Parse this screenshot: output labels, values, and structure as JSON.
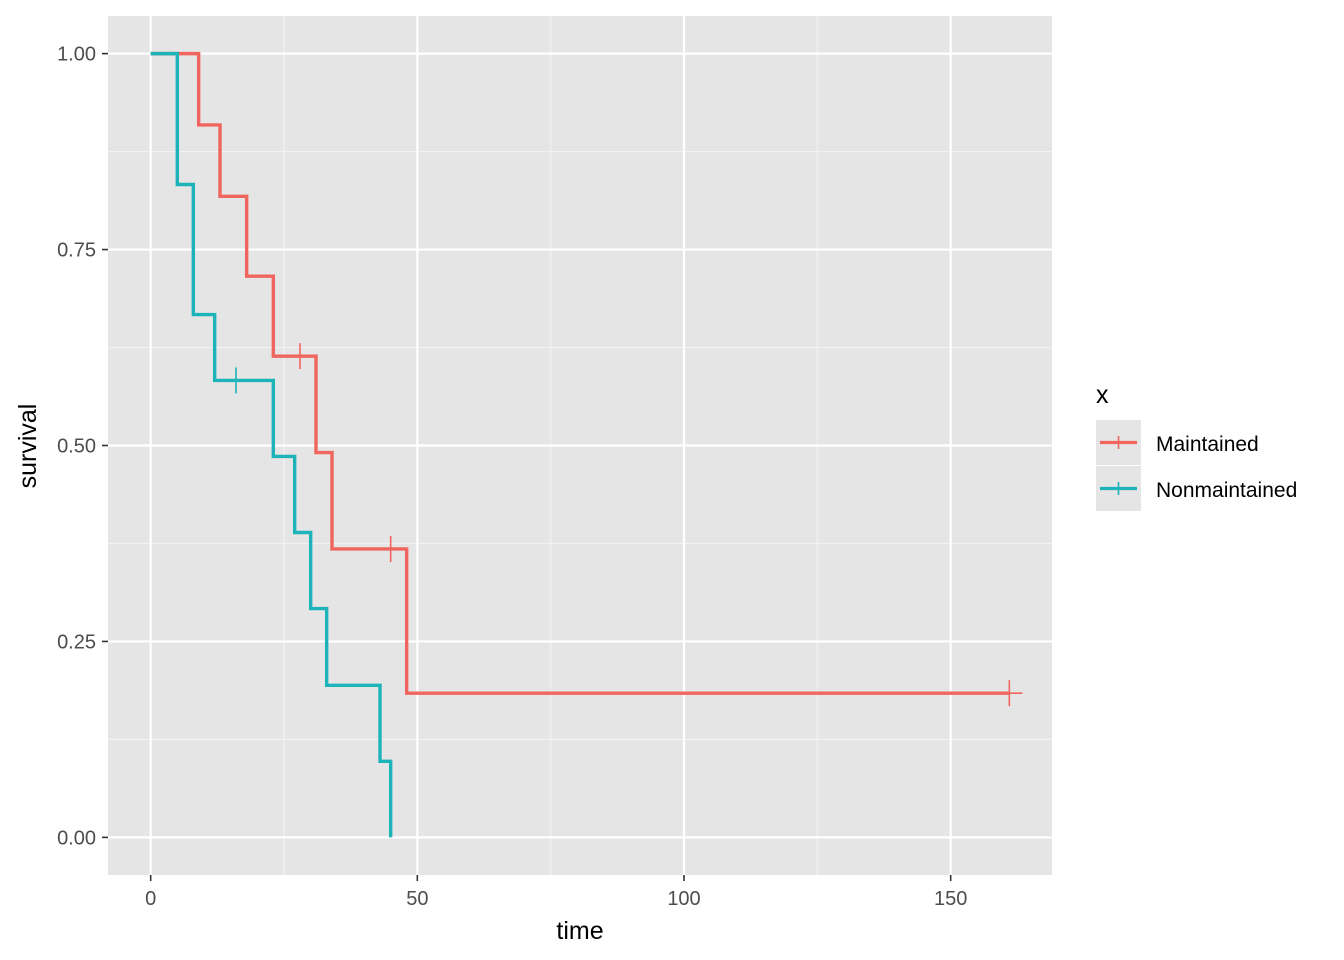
{
  "chart_data": {
    "type": "line",
    "subtype": "step",
    "title": "",
    "xlabel": "time",
    "ylabel": "survival",
    "xlim": [
      -8,
      169
    ],
    "ylim": [
      -0.048,
      1.048
    ],
    "x_ticks": [
      0,
      50,
      100,
      150
    ],
    "x_tick_labels": [
      "0",
      "50",
      "100",
      "150"
    ],
    "y_ticks": [
      0,
      0.25,
      0.5,
      0.75,
      1
    ],
    "y_tick_labels": [
      "0.00",
      "0.25",
      "0.50",
      "0.75",
      "1.00"
    ],
    "grid": true,
    "legend": {
      "title": "x",
      "position": "right"
    },
    "background": "#e5e5e5",
    "series": [
      {
        "name": "Maintained",
        "color": "#f0655e",
        "steps": [
          [
            0,
            1.0
          ],
          [
            9,
            0.909
          ],
          [
            13,
            0.818
          ],
          [
            18,
            0.716
          ],
          [
            23,
            0.614
          ],
          [
            31,
            0.491
          ],
          [
            34,
            0.368
          ],
          [
            48,
            0.184
          ],
          [
            161,
            0.184
          ]
        ],
        "censored": [
          [
            28,
            0.614
          ],
          [
            45,
            0.368
          ],
          [
            161,
            0.184
          ]
        ]
      },
      {
        "name": "Nonmaintained",
        "color": "#1cb4b8",
        "steps": [
          [
            0,
            1.0
          ],
          [
            5,
            0.833
          ],
          [
            8,
            0.667
          ],
          [
            12,
            0.583
          ],
          [
            23,
            0.486
          ],
          [
            27,
            0.389
          ],
          [
            30,
            0.292
          ],
          [
            33,
            0.194
          ],
          [
            43,
            0.097
          ],
          [
            45,
            0.0
          ]
        ],
        "censored": [
          [
            16,
            0.583
          ]
        ]
      }
    ]
  }
}
